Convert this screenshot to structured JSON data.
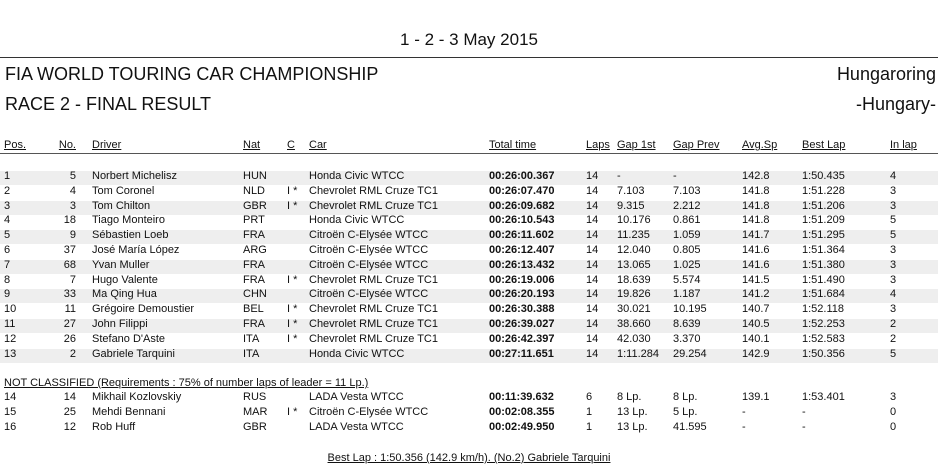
{
  "header": {
    "date": "1 - 2 - 3 May 2015",
    "championship": "FIA WORLD TOURING CAR CHAMPIONSHIP",
    "circuit": "Hungaroring",
    "race": "RACE 2 - FINAL RESULT",
    "country": "-Hungary-"
  },
  "table": {
    "columns": [
      "Pos.",
      "No.",
      "Driver",
      "Nat",
      "C",
      "Car",
      "Total time",
      "Laps",
      "Gap 1st",
      "Gap Prev",
      "Avg.Sp",
      "Best Lap",
      "In lap"
    ],
    "rows": [
      [
        "1",
        "5",
        "Norbert Michelisz",
        "HUN",
        null,
        "Honda Civic WTCC",
        "00:26:00.367",
        "14",
        "-",
        "-",
        "142.8",
        "1:50.435",
        "4"
      ],
      [
        "2",
        "4",
        "Tom Coronel",
        "NLD",
        "I *",
        "Chevrolet RML Cruze TC1",
        "00:26:07.470",
        "14",
        "7.103",
        "7.103",
        "141.8",
        "1:51.228",
        "3"
      ],
      [
        "3",
        "3",
        "Tom Chilton",
        "GBR",
        "I *",
        "Chevrolet RML Cruze TC1",
        "00:26:09.682",
        "14",
        "9.315",
        "2.212",
        "141.8",
        "1:51.206",
        "3"
      ],
      [
        "4",
        "18",
        "Tiago Monteiro",
        "PRT",
        null,
        "Honda Civic WTCC",
        "00:26:10.543",
        "14",
        "10.176",
        "0.861",
        "141.8",
        "1:51.209",
        "5"
      ],
      [
        "5",
        "9",
        "Sébastien Loeb",
        "FRA",
        null,
        "Citroën C-Elysée WTCC",
        "00:26:11.602",
        "14",
        "11.235",
        "1.059",
        "141.7",
        "1:51.295",
        "5"
      ],
      [
        "6",
        "37",
        "José María López",
        "ARG",
        null,
        "Citroën C-Elysée WTCC",
        "00:26:12.407",
        "14",
        "12.040",
        "0.805",
        "141.6",
        "1:51.364",
        "3"
      ],
      [
        "7",
        "68",
        "Yvan Muller",
        "FRA",
        null,
        "Citroën C-Elysée WTCC",
        "00:26:13.432",
        "14",
        "13.065",
        "1.025",
        "141.6",
        "1:51.380",
        "3"
      ],
      [
        "8",
        "7",
        "Hugo Valente",
        "FRA",
        "I *",
        "Chevrolet RML Cruze TC1",
        "00:26:19.006",
        "14",
        "18.639",
        "5.574",
        "141.5",
        "1:51.490",
        "3"
      ],
      [
        "9",
        "33",
        "Ma Qing Hua",
        "CHN",
        null,
        "Citroën C-Elysée WTCC",
        "00:26:20.193",
        "14",
        "19.826",
        "1.187",
        "141.2",
        "1:51.684",
        "4"
      ],
      [
        "10",
        "11",
        "Grégoire Demoustier",
        "BEL",
        "I *",
        "Chevrolet RML Cruze TC1",
        "00:26:30.388",
        "14",
        "30.021",
        "10.195",
        "140.7",
        "1:52.118",
        "3"
      ],
      [
        "11",
        "27",
        "John Filippi",
        "FRA",
        "I *",
        "Chevrolet RML Cruze TC1",
        "00:26:39.027",
        "14",
        "38.660",
        "8.639",
        "140.5",
        "1:52.253",
        "2"
      ],
      [
        "12",
        "26",
        "Stefano D'Aste",
        "ITA",
        "I *",
        "Chevrolet RML Cruze TC1",
        "00:26:42.397",
        "14",
        "42.030",
        "3.370",
        "140.1",
        "1:52.583",
        "2"
      ],
      [
        "13",
        "2",
        "Gabriele Tarquini",
        "ITA",
        null,
        "Honda Civic WTCC",
        "00:27:11.651",
        "14",
        "1:11.284",
        "29.254",
        "142.9",
        "1:50.356",
        "5"
      ]
    ],
    "not_classified_title": "NOT CLASSIFIED (Requirements : 75% of number laps of leader = 11 Lp.)",
    "not_classified_rows": [
      [
        "14",
        "14",
        "Mikhail Kozlovskiy",
        "RUS",
        null,
        "LADA Vesta WTCC",
        "00:11:39.632",
        "6",
        "8 Lp.",
        "8 Lp.",
        "139.1",
        "1:53.401",
        "3"
      ],
      [
        "15",
        "25",
        "Mehdi Bennani",
        "MAR",
        "I *",
        "Citroën C-Elysée WTCC",
        "00:02:08.355",
        "1",
        "13 Lp.",
        "5 Lp.",
        "-",
        "-",
        "0"
      ],
      [
        "16",
        "12",
        "Rob Huff",
        "GBR",
        null,
        "LADA Vesta WTCC",
        "00:02:49.950",
        "1",
        "13 Lp.",
        "41.595",
        "-",
        "-",
        "0"
      ]
    ]
  },
  "footer": {
    "best_lap": "Best Lap : 1:50.356 (142.9 km/h). (No.2) Gabriele Tarquini"
  }
}
